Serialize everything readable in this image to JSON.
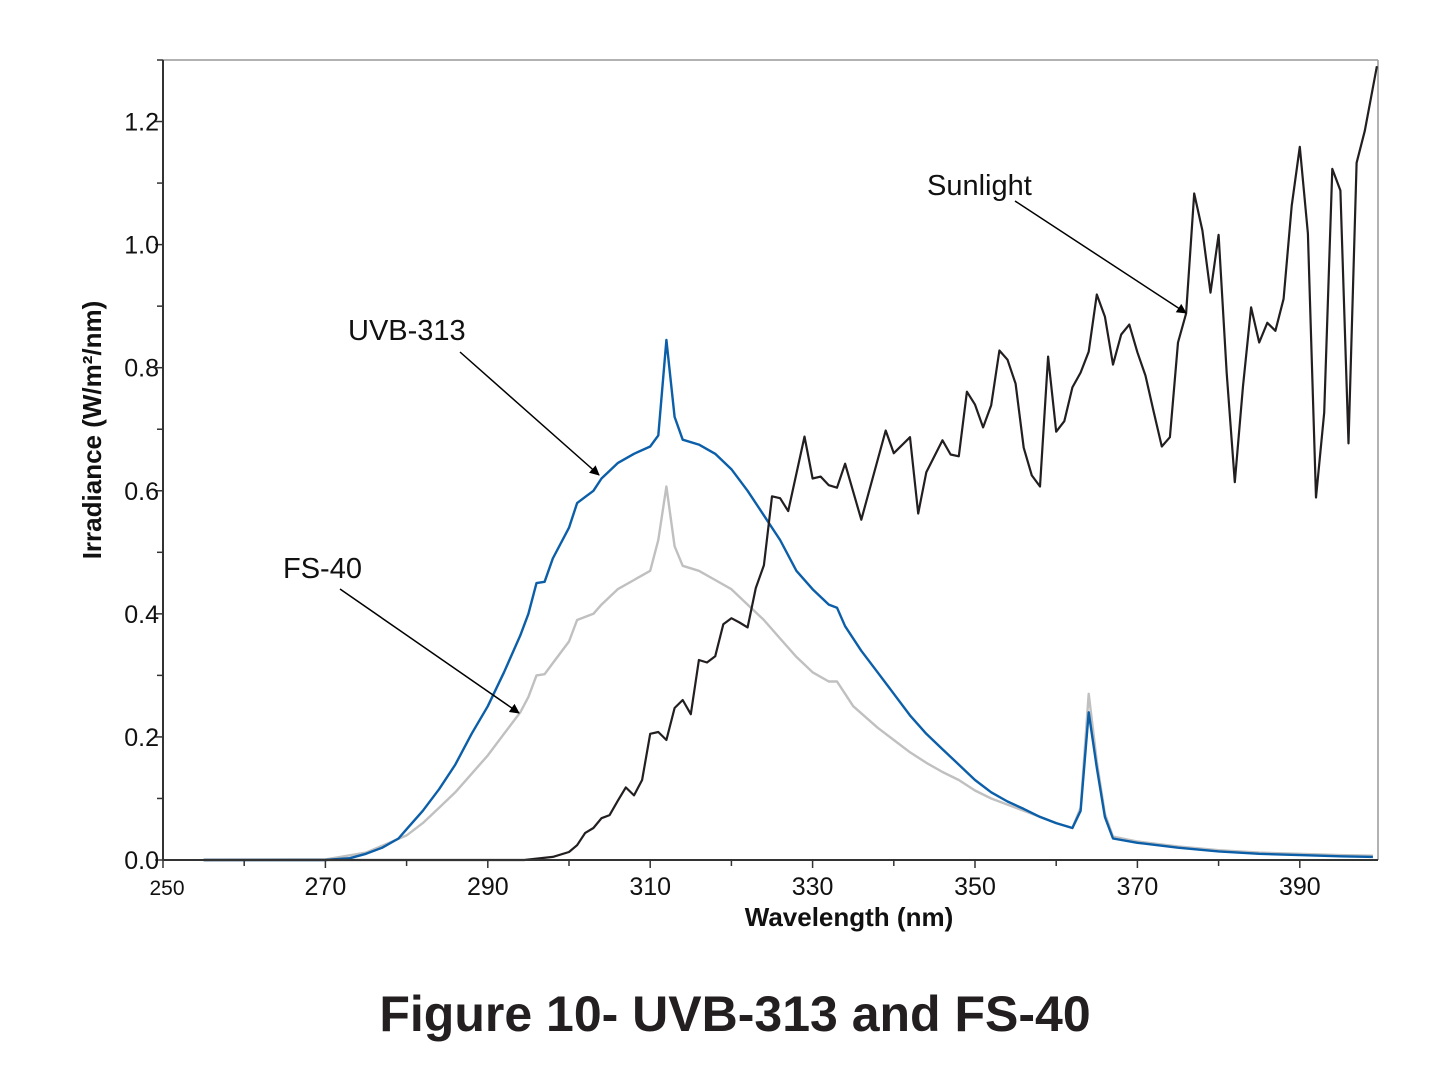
{
  "chart_data": {
    "type": "line",
    "title": "Figure 10- UVB-313 and FS-40",
    "xlabel": "Wavelength (nm)",
    "ylabel": "Irradiance (W/m²/nm)",
    "xlim": [
      250,
      400
    ],
    "ylim": [
      0,
      1.3
    ],
    "xticks": [
      250,
      270,
      290,
      310,
      330,
      350,
      370,
      390
    ],
    "xtick_labels": [
      "250",
      "270",
      "290",
      "310",
      "330",
      "350",
      "370",
      "390"
    ],
    "yticks": [
      0,
      0.2,
      0.4,
      0.6,
      0.8,
      1.0,
      1.2
    ],
    "ytick_labels": [
      "0.0",
      "0.2",
      "0.4",
      "0.6",
      "0.8",
      "1.0",
      "1.2"
    ],
    "grid": false,
    "legend": "none",
    "series": [
      {
        "name": "Sunlight",
        "color": "#231f20",
        "x": [
          255,
          270,
          285,
          294.5,
          298,
          300,
          301,
          302,
          303,
          304,
          305,
          306,
          307,
          308,
          309,
          310,
          311,
          312,
          313,
          314,
          315,
          316,
          317,
          318,
          319,
          320,
          321,
          322,
          323,
          324,
          325,
          326,
          327,
          329,
          330,
          331,
          332,
          333,
          334,
          336,
          339,
          340,
          342,
          343,
          344,
          346,
          347,
          348,
          349,
          350,
          351,
          352,
          353,
          354,
          355,
          356,
          357,
          358,
          359,
          360,
          361,
          362,
          363,
          364,
          365,
          366,
          367,
          368,
          369,
          370,
          371,
          372,
          373,
          374,
          375,
          376,
          377,
          378,
          379,
          380,
          381,
          382,
          383,
          384,
          385,
          386,
          387,
          388,
          389,
          390,
          391,
          392,
          393,
          394,
          395,
          396,
          397,
          398,
          399.5
        ],
        "y": [
          0,
          0,
          0,
          0,
          0.005,
          0.013,
          0.024,
          0.044,
          0.052,
          0.068,
          0.073,
          0.096,
          0.118,
          0.105,
          0.13,
          0.205,
          0.208,
          0.195,
          0.247,
          0.26,
          0.237,
          0.325,
          0.321,
          0.331,
          0.383,
          0.393,
          0.386,
          0.378,
          0.442,
          0.479,
          0.591,
          0.588,
          0.567,
          0.688,
          0.62,
          0.623,
          0.609,
          0.605,
          0.644,
          0.553,
          0.698,
          0.661,
          0.687,
          0.563,
          0.63,
          0.682,
          0.659,
          0.656,
          0.761,
          0.74,
          0.703,
          0.739,
          0.828,
          0.813,
          0.774,
          0.67,
          0.625,
          0.607,
          0.818,
          0.696,
          0.713,
          0.768,
          0.792,
          0.826,
          0.919,
          0.883,
          0.805,
          0.854,
          0.87,
          0.825,
          0.787,
          0.729,
          0.672,
          0.687,
          0.841,
          0.888,
          1.083,
          1.023,
          0.922,
          1.016,
          0.791,
          0.614,
          0.77,
          0.898,
          0.841,
          0.873,
          0.86,
          0.912,
          1.063,
          1.159,
          1.018,
          0.589,
          0.727,
          1.123,
          1.088,
          0.677,
          1.133,
          1.185,
          1.29
        ]
      },
      {
        "name": "UVB-313",
        "color": "#0b5ea8",
        "x": [
          255,
          270,
          273,
          275,
          277,
          279,
          280,
          282,
          284,
          286,
          288,
          290,
          292,
          294,
          295,
          296,
          297,
          298,
          300,
          301,
          302,
          303,
          304,
          306,
          308,
          310,
          311,
          312,
          313,
          314,
          316,
          318,
          320,
          322,
          324,
          326,
          328,
          330,
          332,
          333,
          334,
          336,
          338,
          340,
          342,
          344,
          346,
          348,
          350,
          352,
          354,
          356,
          358,
          360,
          362,
          363,
          364,
          365,
          366,
          367,
          370,
          375,
          380,
          385,
          390,
          395,
          399
        ],
        "y": [
          0,
          0,
          0.003,
          0.01,
          0.02,
          0.035,
          0.05,
          0.08,
          0.115,
          0.155,
          0.205,
          0.25,
          0.305,
          0.365,
          0.4,
          0.45,
          0.452,
          0.49,
          0.54,
          0.58,
          0.59,
          0.6,
          0.62,
          0.645,
          0.66,
          0.672,
          0.69,
          0.845,
          0.72,
          0.683,
          0.675,
          0.66,
          0.635,
          0.6,
          0.56,
          0.52,
          0.47,
          0.44,
          0.415,
          0.41,
          0.38,
          0.34,
          0.305,
          0.27,
          0.235,
          0.205,
          0.18,
          0.155,
          0.13,
          0.11,
          0.095,
          0.083,
          0.07,
          0.06,
          0.052,
          0.08,
          0.24,
          0.15,
          0.07,
          0.035,
          0.028,
          0.02,
          0.014,
          0.01,
          0.008,
          0.006,
          0.005
        ]
      },
      {
        "name": "FS-40",
        "color": "#c0c0c0",
        "x": [
          255,
          270,
          275,
          280,
          282,
          284,
          286,
          288,
          290,
          292,
          294,
          295,
          296,
          297,
          298,
          300,
          301,
          302,
          303,
          304,
          306,
          308,
          310,
          311,
          312,
          313,
          314,
          316,
          318,
          320,
          322,
          324,
          326,
          328,
          330,
          332,
          333,
          334,
          335,
          338,
          340,
          342,
          344,
          346,
          348,
          350,
          352,
          354,
          356,
          358,
          360,
          362,
          363,
          364,
          365,
          366,
          367,
          370,
          375,
          380,
          385,
          390,
          395,
          399
        ],
        "y": [
          0,
          0.001,
          0.012,
          0.04,
          0.06,
          0.085,
          0.11,
          0.14,
          0.17,
          0.205,
          0.24,
          0.265,
          0.3,
          0.302,
          0.32,
          0.355,
          0.39,
          0.395,
          0.4,
          0.415,
          0.44,
          0.455,
          0.47,
          0.52,
          0.607,
          0.51,
          0.478,
          0.47,
          0.455,
          0.44,
          0.415,
          0.39,
          0.36,
          0.33,
          0.305,
          0.29,
          0.29,
          0.27,
          0.25,
          0.215,
          0.195,
          0.175,
          0.158,
          0.143,
          0.13,
          0.113,
          0.1,
          0.09,
          0.08,
          0.07,
          0.06,
          0.052,
          0.085,
          0.27,
          0.16,
          0.075,
          0.038,
          0.03,
          0.022,
          0.016,
          0.012,
          0.01,
          0.008,
          0.007
        ]
      }
    ],
    "annotations": [
      {
        "text": "Sunlight",
        "series": "Sunlight"
      },
      {
        "text": "UVB-313",
        "series": "UVB-313"
      },
      {
        "text": "FS-40",
        "series": "FS-40"
      }
    ]
  }
}
